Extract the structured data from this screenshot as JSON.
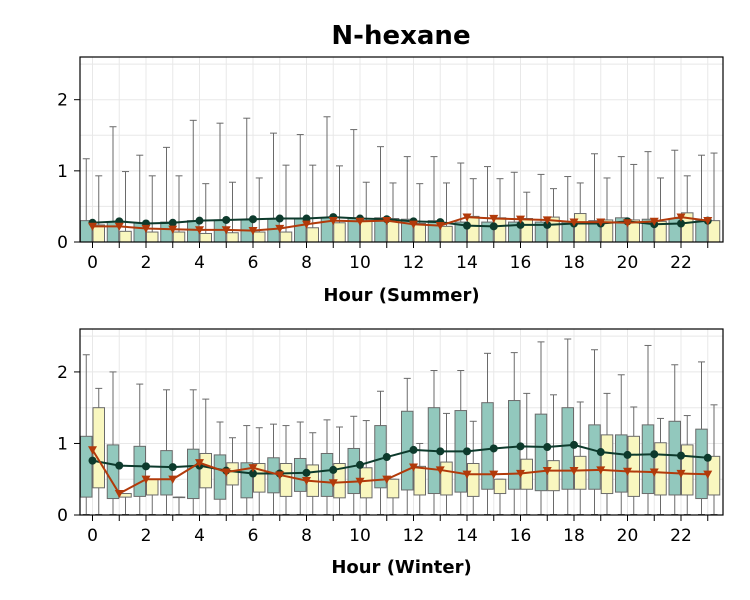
{
  "title": "N-hexane",
  "colors": {
    "box_a": "#92c8bd",
    "box_b": "#f9f7bf",
    "median_a": "#0d3a2c",
    "median_b": "#b23a0a",
    "whisker": "#6a6a6a",
    "grid": "#e8e8e8"
  },
  "chart_data": [
    {
      "type": "box",
      "name": "summer",
      "xlabel": "Hour (Summer)",
      "ylim": [
        0,
        2.6
      ],
      "yticks": [
        0,
        1,
        2
      ],
      "xticks": [
        0,
        2,
        4,
        6,
        8,
        10,
        12,
        14,
        16,
        18,
        20,
        22
      ],
      "hours": [
        0,
        1,
        2,
        3,
        4,
        5,
        6,
        7,
        8,
        9,
        10,
        11,
        12,
        13,
        14,
        15,
        16,
        17,
        18,
        19,
        20,
        21,
        22,
        23
      ],
      "grid": true,
      "series": [
        {
          "marker": "circle",
          "q1": [
            0,
            0,
            0,
            0,
            0,
            0,
            0,
            0,
            0,
            0,
            0,
            0,
            0,
            0,
            0,
            0,
            0,
            0,
            0,
            0,
            0,
            0,
            0,
            0
          ],
          "q3": [
            0.3,
            0.28,
            0.27,
            0.28,
            0.3,
            0.31,
            0.31,
            0.32,
            0.33,
            0.34,
            0.34,
            0.34,
            0.32,
            0.3,
            0.28,
            0.28,
            0.28,
            0.28,
            0.28,
            0.3,
            0.34,
            0.32,
            0.33,
            0.3
          ],
          "whisker_high": [
            1.17,
            1.62,
            1.22,
            1.33,
            1.71,
            1.67,
            1.74,
            1.53,
            1.51,
            1.76,
            1.58,
            1.34,
            1.2,
            1.2,
            1.11,
            1.06,
            0.98,
            0.95,
            0.92,
            1.24,
            1.2,
            1.27,
            1.29,
            1.22
          ],
          "mean": [
            0.27,
            0.29,
            0.26,
            0.27,
            0.3,
            0.31,
            0.32,
            0.33,
            0.33,
            0.35,
            0.33,
            0.32,
            0.29,
            0.28,
            0.23,
            0.22,
            0.24,
            0.24,
            0.26,
            0.26,
            0.29,
            0.25,
            0.26,
            0.3
          ]
        },
        {
          "marker": "triangle",
          "q1": [
            0,
            0,
            0,
            0,
            0,
            0,
            0,
            0,
            0,
            0,
            0,
            0,
            0,
            0,
            0,
            0,
            0,
            0,
            0,
            0,
            0,
            0,
            0,
            0
          ],
          "q3": [
            0.24,
            0.15,
            0.14,
            0.14,
            0.12,
            0.13,
            0.14,
            0.14,
            0.2,
            0.27,
            0.3,
            0.33,
            0.26,
            0.22,
            0.36,
            0.34,
            0.33,
            0.35,
            0.4,
            0.31,
            0.31,
            0.29,
            0.41,
            0.3
          ],
          "whisker_high": [
            0.93,
            0.99,
            0.93,
            0.93,
            0.82,
            0.84,
            0.9,
            1.08,
            1.08,
            1.07,
            0.84,
            0.83,
            0.82,
            0.83,
            0.89,
            0.89,
            0.7,
            0.75,
            0.83,
            0.9,
            1.09,
            0.9,
            0.93,
            1.25
          ],
          "mean": [
            0.22,
            0.22,
            0.19,
            0.18,
            0.17,
            0.17,
            0.16,
            0.19,
            0.25,
            0.3,
            0.29,
            0.3,
            0.25,
            0.23,
            0.35,
            0.33,
            0.32,
            0.31,
            0.28,
            0.28,
            0.27,
            0.29,
            0.35,
            0.3
          ]
        }
      ]
    },
    {
      "type": "box",
      "name": "winter",
      "xlabel": "Hour (Winter)",
      "ylim": [
        0,
        2.6
      ],
      "yticks": [
        0,
        1,
        2
      ],
      "xticks": [
        0,
        2,
        4,
        6,
        8,
        10,
        12,
        14,
        16,
        18,
        20,
        22
      ],
      "hours": [
        0,
        1,
        2,
        3,
        4,
        5,
        6,
        7,
        8,
        9,
        10,
        11,
        12,
        13,
        14,
        15,
        16,
        17,
        18,
        19,
        20,
        21,
        22,
        23
      ],
      "grid": true,
      "series": [
        {
          "marker": "circle",
          "q1": [
            0.25,
            0.23,
            0.26,
            0.28,
            0.23,
            0.22,
            0.24,
            0.31,
            0.33,
            0.26,
            0.3,
            0.38,
            0.35,
            0.3,
            0.32,
            0.36,
            0.36,
            0.34,
            0.36,
            0.36,
            0.32,
            0.3,
            0.28,
            0.23
          ],
          "q3": [
            1.1,
            0.98,
            0.96,
            0.9,
            0.92,
            0.84,
            0.73,
            0.8,
            0.79,
            0.86,
            0.93,
            1.25,
            1.45,
            1.5,
            1.46,
            1.57,
            1.6,
            1.41,
            1.5,
            1.26,
            1.12,
            1.26,
            1.31,
            1.2
          ],
          "whisker_high": [
            2.24,
            2.0,
            1.83,
            1.75,
            1.75,
            1.3,
            1.25,
            1.27,
            1.3,
            1.33,
            1.38,
            1.73,
            1.91,
            2.02,
            2.02,
            2.26,
            2.27,
            2.42,
            2.46,
            2.31,
            1.96,
            2.37,
            2.1,
            2.14
          ],
          "mean": [
            0.76,
            0.69,
            0.68,
            0.67,
            0.69,
            0.62,
            0.58,
            0.58,
            0.59,
            0.63,
            0.7,
            0.81,
            0.91,
            0.89,
            0.89,
            0.93,
            0.96,
            0.95,
            0.98,
            0.88,
            0.84,
            0.85,
            0.83,
            0.8
          ]
        },
        {
          "marker": "triangle",
          "q1": [
            0.38,
            0.25,
            0.28,
            0.25,
            0.38,
            0.42,
            0.32,
            0.26,
            0.26,
            0.24,
            0.24,
            0.24,
            0.28,
            0.28,
            0.26,
            0.3,
            0.36,
            0.34,
            0.36,
            0.3,
            0.26,
            0.28,
            0.28,
            0.28
          ],
          "q3": [
            1.5,
            0.3,
            0.5,
            0.25,
            0.86,
            0.73,
            0.72,
            0.72,
            0.7,
            0.72,
            0.66,
            0.5,
            0.68,
            0.74,
            0.72,
            0.5,
            0.78,
            0.76,
            0.82,
            1.12,
            1.1,
            1.01,
            0.98,
            0.82
          ],
          "whisker_high": [
            1.77,
            0.3,
            0.5,
            0.25,
            1.62,
            1.08,
            1.22,
            1.25,
            1.15,
            1.23,
            1.32,
            0.5,
            1.0,
            1.42,
            1.31,
            0.5,
            1.7,
            1.68,
            1.58,
            1.7,
            1.51,
            1.35,
            1.39,
            1.54
          ],
          "mean": [
            0.91,
            0.3,
            0.5,
            0.5,
            0.73,
            0.6,
            0.66,
            0.56,
            0.48,
            0.45,
            0.47,
            0.5,
            0.67,
            0.63,
            0.57,
            0.57,
            0.58,
            0.62,
            0.62,
            0.63,
            0.61,
            0.6,
            0.58,
            0.57
          ]
        }
      ]
    }
  ]
}
